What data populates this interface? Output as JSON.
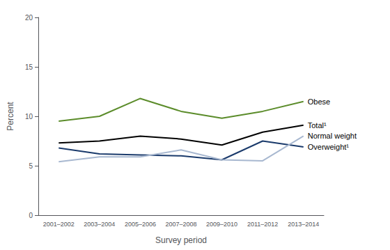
{
  "chart_data": {
    "type": "line",
    "categories": [
      "2001–2002",
      "2003–2004",
      "2005–2006",
      "2007–2008",
      "2009–2010",
      "2011–2012",
      "2013–2014"
    ],
    "series": [
      {
        "name": "Obese",
        "color": "#5b8c2a",
        "values": [
          9.5,
          10.0,
          11.8,
          10.5,
          9.8,
          10.5,
          11.5
        ]
      },
      {
        "name": "Total¹",
        "color": "#000000",
        "values": [
          7.3,
          7.5,
          8.0,
          7.7,
          7.1,
          8.4,
          9.1
        ]
      },
      {
        "name": "Overweight¹",
        "color": "#1a3a6b",
        "values": [
          6.8,
          6.2,
          6.1,
          6.0,
          5.6,
          7.5,
          6.9
        ]
      },
      {
        "name": "Normal weight",
        "color": "#a8b8d0",
        "values": [
          5.4,
          5.9,
          5.9,
          6.6,
          5.6,
          5.5,
          8.0
        ]
      }
    ],
    "xlabel": "Survey period",
    "ylabel": "Percent",
    "ylim": [
      0,
      20
    ],
    "yticks": [
      0,
      5,
      10,
      15,
      20
    ],
    "grid": false
  }
}
